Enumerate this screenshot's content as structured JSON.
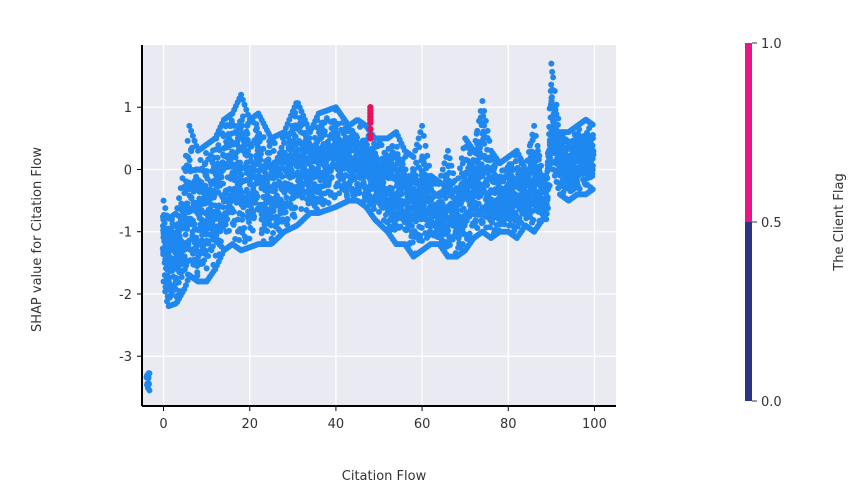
{
  "chart_data": {
    "type": "scatter",
    "title": "",
    "xlabel": "Citation Flow",
    "ylabel": "SHAP value for Citation Flow",
    "xlim": [
      -5,
      105
    ],
    "ylim": [
      -3.8,
      2.0
    ],
    "xticks": [
      0,
      20,
      40,
      60,
      80,
      100
    ],
    "yticks": [
      1,
      0,
      -1,
      -2,
      -3
    ],
    "grid": true,
    "colorbar": {
      "label": "The Client Flag",
      "ticks": [
        "1.0",
        "0.5",
        "0.0"
      ],
      "range": [
        0,
        1
      ],
      "colors": {
        "low": "#2c3580",
        "high": "#e8158a"
      }
    },
    "colors": {
      "points": "#1e88f0",
      "highlight": "#e8125a",
      "plot_bg": "#eaeaf2"
    },
    "envelope": [
      {
        "x": -4,
        "lo": -3.55,
        "hi": -3.25
      },
      {
        "x": 0,
        "lo": -1.8,
        "hi": -0.5
      },
      {
        "x": 1,
        "lo": -2.2,
        "hi": -0.8
      },
      {
        "x": 3,
        "lo": -2.15,
        "hi": -0.7
      },
      {
        "x": 5,
        "lo": -1.9,
        "hi": 0.1
      },
      {
        "x": 6,
        "lo": -1.7,
        "hi": 0.7
      },
      {
        "x": 8,
        "lo": -1.8,
        "hi": 0.3
      },
      {
        "x": 10,
        "lo": -1.8,
        "hi": 0.4
      },
      {
        "x": 12,
        "lo": -1.6,
        "hi": 0.5
      },
      {
        "x": 14,
        "lo": -1.3,
        "hi": 0.8
      },
      {
        "x": 16,
        "lo": -1.2,
        "hi": 0.9
      },
      {
        "x": 18,
        "lo": -1.3,
        "hi": 1.2
      },
      {
        "x": 20,
        "lo": -1.25,
        "hi": 0.8
      },
      {
        "x": 22,
        "lo": -1.2,
        "hi": 0.9
      },
      {
        "x": 25,
        "lo": -1.2,
        "hi": 0.5
      },
      {
        "x": 28,
        "lo": -1.0,
        "hi": 0.6
      },
      {
        "x": 31,
        "lo": -0.9,
        "hi": 1.1
      },
      {
        "x": 34,
        "lo": -0.7,
        "hi": 0.6
      },
      {
        "x": 36,
        "lo": -0.7,
        "hi": 0.9
      },
      {
        "x": 40,
        "lo": -0.6,
        "hi": 1.0
      },
      {
        "x": 43,
        "lo": -0.5,
        "hi": 0.7
      },
      {
        "x": 45,
        "lo": -0.5,
        "hi": 0.8
      },
      {
        "x": 47,
        "lo": -0.6,
        "hi": 0.7
      },
      {
        "x": 49,
        "lo": -0.8,
        "hi": 0.5
      },
      {
        "x": 52,
        "lo": -1.0,
        "hi": 0.5
      },
      {
        "x": 54,
        "lo": -1.2,
        "hi": 0.6
      },
      {
        "x": 56,
        "lo": -1.2,
        "hi": 0.3
      },
      {
        "x": 58,
        "lo": -1.4,
        "hi": 0.2
      },
      {
        "x": 60,
        "lo": -1.3,
        "hi": 0.7
      },
      {
        "x": 62,
        "lo": -1.2,
        "hi": -0.1
      },
      {
        "x": 64,
        "lo": -1.2,
        "hi": -0.2
      },
      {
        "x": 66,
        "lo": -1.4,
        "hi": 0.3
      },
      {
        "x": 68,
        "lo": -1.4,
        "hi": -0.3
      },
      {
        "x": 70,
        "lo": -1.3,
        "hi": 0.5
      },
      {
        "x": 72,
        "lo": -1.1,
        "hi": 0.3
      },
      {
        "x": 74,
        "lo": -1.0,
        "hi": 1.1
      },
      {
        "x": 76,
        "lo": -1.1,
        "hi": 0.3
      },
      {
        "x": 78,
        "lo": -1.0,
        "hi": 0.1
      },
      {
        "x": 80,
        "lo": -1.0,
        "hi": 0.2
      },
      {
        "x": 82,
        "lo": -1.1,
        "hi": 0.3
      },
      {
        "x": 84,
        "lo": -0.9,
        "hi": 0.0
      },
      {
        "x": 86,
        "lo": -1.0,
        "hi": 0.7
      },
      {
        "x": 88,
        "lo": -0.8,
        "hi": -0.1
      },
      {
        "x": 89,
        "lo": -0.8,
        "hi": -0.1
      },
      {
        "x": 90,
        "lo": 0.1,
        "hi": 1.7
      },
      {
        "x": 92,
        "lo": -0.4,
        "hi": 0.6
      },
      {
        "x": 94,
        "lo": -0.5,
        "hi": 0.6
      },
      {
        "x": 96,
        "lo": -0.4,
        "hi": 0.7
      },
      {
        "x": 98,
        "lo": -0.4,
        "hi": 0.8
      },
      {
        "x": 100,
        "lo": -0.3,
        "hi": 0.7
      }
    ],
    "highlight_points": [
      {
        "x": 48,
        "y": 1.0
      },
      {
        "x": 48,
        "y": 0.95
      },
      {
        "x": 48,
        "y": 0.9
      },
      {
        "x": 48,
        "y": 0.85
      },
      {
        "x": 48,
        "y": 0.8
      },
      {
        "x": 48,
        "y": 0.75
      },
      {
        "x": 48,
        "y": 0.65
      },
      {
        "x": 48,
        "y": 0.55
      },
      {
        "x": 48,
        "y": 0.5
      }
    ]
  }
}
